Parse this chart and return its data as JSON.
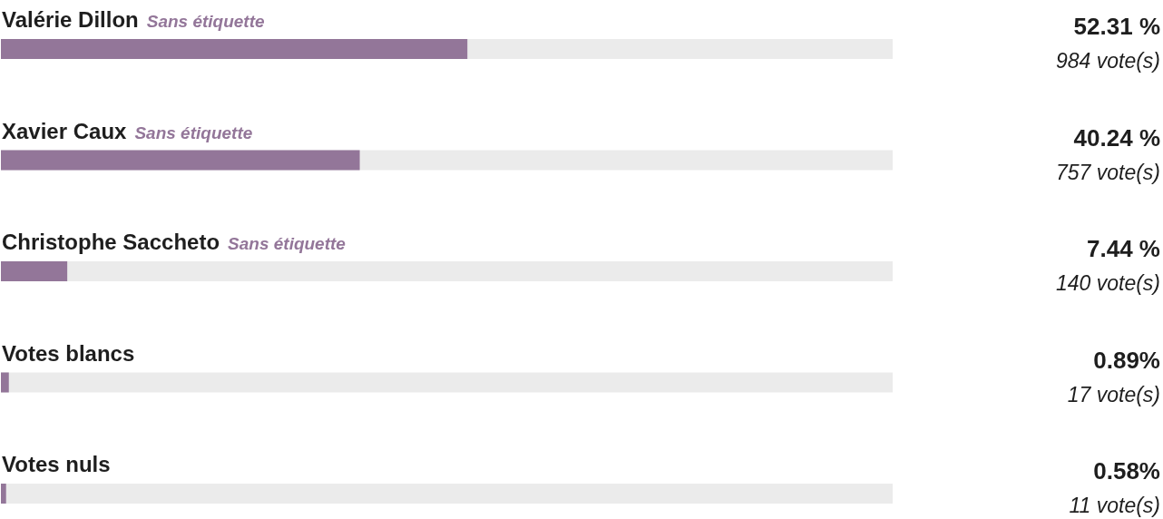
{
  "chart_data": {
    "type": "bar",
    "orientation": "horizontal",
    "categories": [
      "Valérie Dillon",
      "Xavier Caux",
      "Christophe Saccheto",
      "Votes blancs",
      "Votes nuls"
    ],
    "values": [
      52.31,
      40.24,
      7.44,
      0.89,
      0.58
    ],
    "color": "#937699",
    "xlim": [
      0,
      100
    ],
    "tick_labels": "y",
    "value_labels": [
      "52.31 %",
      "40.24 %",
      "7.44 %",
      "0.89%",
      "0.58%"
    ],
    "annotations": [
      "984 vote(s)",
      "757 vote(s)",
      "140 vote(s)",
      "17 vote(s)",
      "11 vote(s)",
      "Sans étiquette",
      "Sans étiquette",
      "Sans étiquette"
    ]
  }
}
